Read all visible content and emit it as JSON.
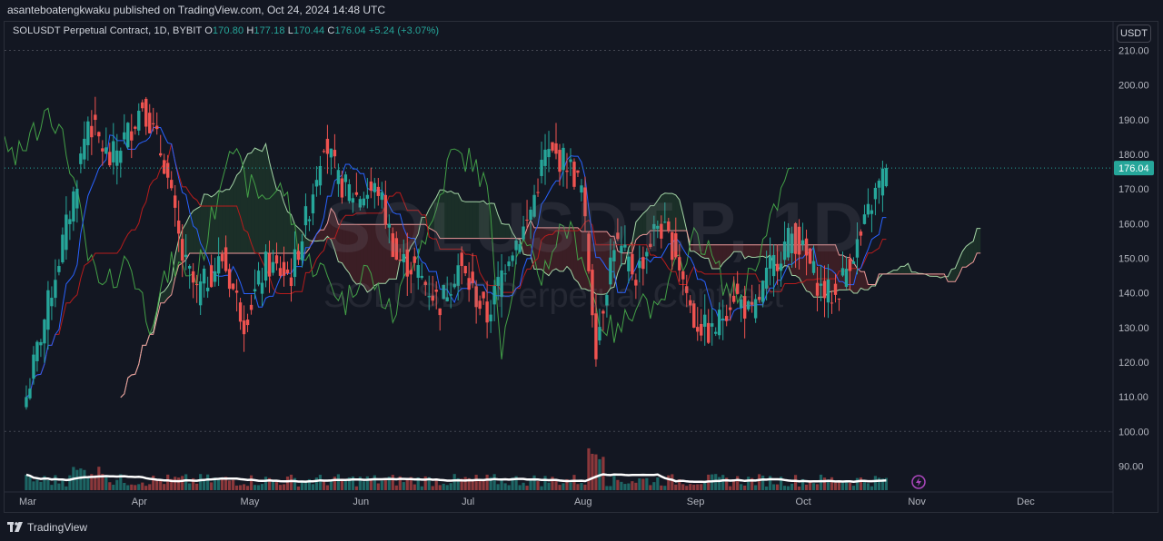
{
  "header": {
    "publish_line": "asanteboatengkwaku published on TradingView.com, Oct 24, 2024 14:48 UTC"
  },
  "legend": {
    "symbol": "SOLUSDT Perpetual Contract, 1D, BYBIT",
    "o_label": "O",
    "o_value": "170.80",
    "h_label": "H",
    "h_value": "177.18",
    "l_label": "L",
    "l_value": "170.44",
    "c_label": "C",
    "c_value": "176.04",
    "change": "+5.24 (+3.07%)"
  },
  "unit_button": "USDT",
  "watermark": {
    "main": "SOLUSDT.P, 1D",
    "sub": "SOLUSDT Perpetual Contract"
  },
  "footer": {
    "brand": "TradingView"
  },
  "colors": {
    "up": "#26a69a",
    "down": "#ef5350",
    "background": "#131722",
    "tenkan": "#2962ff",
    "kijun": "#b71c1c",
    "chikou": "#43a047",
    "span_a": "#a5d6a7",
    "span_b": "#ef9a9a",
    "price_tag": "#26a69a"
  },
  "icons": {
    "flash": "lightning-bolt-icon",
    "logo": "tradingview-logo-icon"
  },
  "chart_data": {
    "type": "candlestick",
    "title": "SOLUSDT Perpetual Contract, 1D, BYBIT",
    "indicator": "Ichimoku Cloud + Volume",
    "y_axis": {
      "range": [
        82,
        213
      ],
      "ticks": [
        "210.00",
        "200.00",
        "190.00",
        "180.00",
        "170.00",
        "160.00",
        "150.00",
        "140.00",
        "130.00",
        "120.00",
        "110.00",
        "100.00",
        "90.00"
      ]
    },
    "x_axis": {
      "ticks": [
        "Mar",
        "Apr",
        "May",
        "Jun",
        "Jul",
        "Aug",
        "Sep",
        "Oct",
        "Nov",
        "Dec"
      ]
    },
    "last_price": "176.04",
    "dashed_levels": [
      210,
      100
    ],
    "series_anchors": {
      "close_approx": [
        [
          "2024-03-01",
          110
        ],
        [
          "2024-03-05",
          128
        ],
        [
          "2024-03-10",
          150
        ],
        [
          "2024-03-14",
          168
        ],
        [
          "2024-03-18",
          190
        ],
        [
          "2024-03-24",
          178
        ],
        [
          "2024-03-30",
          188
        ],
        [
          "2024-04-02",
          195
        ],
        [
          "2024-04-08",
          178
        ],
        [
          "2024-04-13",
          150
        ],
        [
          "2024-04-17",
          140
        ],
        [
          "2024-04-24",
          150
        ],
        [
          "2024-04-30",
          132
        ],
        [
          "2024-05-06",
          148
        ],
        [
          "2024-05-13",
          145
        ],
        [
          "2024-05-18",
          165
        ],
        [
          "2024-05-22",
          185
        ],
        [
          "2024-05-26",
          172
        ],
        [
          "2024-05-31",
          168
        ],
        [
          "2024-06-06",
          170
        ],
        [
          "2024-06-11",
          150
        ],
        [
          "2024-06-16",
          147
        ],
        [
          "2024-06-23",
          137
        ],
        [
          "2024-06-28",
          148
        ],
        [
          "2024-07-06",
          133
        ],
        [
          "2024-07-12",
          152
        ],
        [
          "2024-07-17",
          160
        ],
        [
          "2024-07-22",
          180
        ],
        [
          "2024-07-28",
          178
        ],
        [
          "2024-08-01",
          170
        ],
        [
          "2024-08-05",
          125
        ],
        [
          "2024-08-10",
          155
        ],
        [
          "2024-08-16",
          145
        ],
        [
          "2024-08-22",
          160
        ],
        [
          "2024-08-27",
          152
        ],
        [
          "2024-09-01",
          132
        ],
        [
          "2024-09-06",
          128
        ],
        [
          "2024-09-12",
          140
        ],
        [
          "2024-09-17",
          133
        ],
        [
          "2024-09-22",
          147
        ],
        [
          "2024-09-28",
          157
        ],
        [
          "2024-10-02",
          150
        ],
        [
          "2024-10-06",
          141
        ],
        [
          "2024-10-10",
          139
        ],
        [
          "2024-10-14",
          150
        ],
        [
          "2024-10-17",
          156
        ],
        [
          "2024-10-20",
          166
        ],
        [
          "2024-10-24",
          176.04
        ]
      ]
    }
  }
}
